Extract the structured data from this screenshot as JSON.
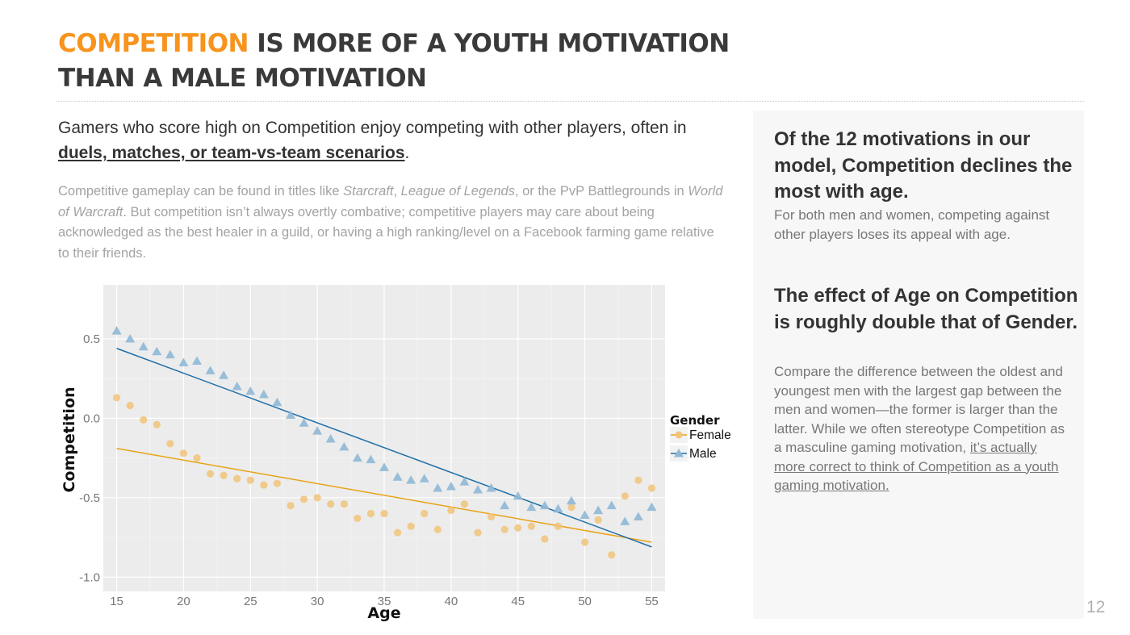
{
  "header": {
    "title_highlight": "COMPETITION",
    "title_rest": " IS MORE OF A YOUTH MOTIVATION THAN A MALE MOTIVATION"
  },
  "intro": {
    "lead_before": "Gamers who score high on Competition enjoy competing with other players, often in ",
    "lead_link": "duels, matches, or team-vs-team scenarios",
    "lead_after": ".",
    "body_1": "Competitive gameplay  can be found in titles like ",
    "body_game_1": "Starcraft",
    "body_2": ", ",
    "body_game_2": "League of Legends",
    "body_3": ", or the PvP Battlegrounds  in ",
    "body_game_3": "World of Warcraft",
    "body_4": ". But competition isn’t always overtly combative; competitive players may care about being acknowledged as the best healer in a guild, or having a high ranking/level on a Facebook farming game relative to their friends."
  },
  "sidebar": {
    "heading_1": "Of the 12 motivations in our model, Competition declines the most with age.",
    "text_1": "For both men and women, competing against other players loses its appeal with age.",
    "heading_2": "The effect of Age on Competition is roughly double that of Gender.",
    "text_2": "Compare the difference between the oldest and youngest men with the largest gap between the men and women—the former is larger than the latter. While we often stereotype Competition as a masculine gaming motivation, ",
    "text_2_link": "it’s actually more correct to think of Competition as a youth gaming motivation."
  },
  "page_number": "12",
  "colors": {
    "accent": "#f7941d",
    "female": "#e8a317",
    "male": "#1f6fa8",
    "female_point": "#f1c47a",
    "male_point": "#8fb8d6",
    "panel_bg": "#ececec",
    "grid": "#ffffff"
  },
  "chart_data": {
    "type": "scatter",
    "title": "",
    "xlabel": "Age",
    "ylabel": "Competition",
    "xlim": [
      14,
      56
    ],
    "ylim": [
      -1.09,
      0.84
    ],
    "xticks": [
      15,
      20,
      25,
      30,
      35,
      40,
      45,
      50,
      55
    ],
    "yticks": [
      0.5,
      0.0,
      -0.5,
      -1.0
    ],
    "ytick_labels": [
      "0.5",
      "0.0",
      "-0.5",
      "-1.0"
    ],
    "legend": {
      "title": "Gender",
      "position": "right"
    },
    "series": [
      {
        "name": "Female",
        "marker": "circle",
        "x": [
          15,
          16,
          17,
          18,
          19,
          20,
          21,
          22,
          23,
          24,
          25,
          26,
          27,
          28,
          29,
          30,
          31,
          32,
          33,
          34,
          35,
          36,
          37,
          38,
          39,
          40,
          41,
          42,
          43,
          44,
          45,
          46,
          47,
          48,
          49,
          50,
          51,
          52,
          53,
          54,
          55
        ],
        "y": [
          0.13,
          0.08,
          -0.01,
          -0.04,
          -0.16,
          -0.22,
          -0.25,
          -0.35,
          -0.36,
          -0.38,
          -0.39,
          -0.42,
          -0.41,
          -0.55,
          -0.51,
          -0.5,
          -0.54,
          -0.54,
          -0.63,
          -0.6,
          -0.6,
          -0.72,
          -0.68,
          -0.6,
          -0.7,
          -0.58,
          -0.54,
          -0.72,
          -0.62,
          -0.7,
          -0.69,
          -0.68,
          -0.76,
          -0.68,
          -0.56,
          -0.78,
          -0.64,
          -0.86,
          -0.49,
          -0.39,
          -0.44
        ],
        "fit": {
          "x": [
            15,
            55
          ],
          "y": [
            -0.19,
            -0.78
          ]
        }
      },
      {
        "name": "Male",
        "marker": "triangle",
        "x": [
          15,
          16,
          17,
          18,
          19,
          20,
          21,
          22,
          23,
          24,
          25,
          26,
          27,
          28,
          29,
          30,
          31,
          32,
          33,
          34,
          35,
          36,
          37,
          38,
          39,
          40,
          41,
          42,
          43,
          44,
          45,
          46,
          47,
          48,
          49,
          50,
          51,
          52,
          53,
          54,
          55
        ],
        "y": [
          0.55,
          0.5,
          0.45,
          0.42,
          0.4,
          0.35,
          0.36,
          0.3,
          0.27,
          0.2,
          0.17,
          0.15,
          0.1,
          0.02,
          -0.03,
          -0.08,
          -0.13,
          -0.18,
          -0.25,
          -0.26,
          -0.31,
          -0.37,
          -0.39,
          -0.38,
          -0.44,
          -0.43,
          -0.4,
          -0.45,
          -0.44,
          -0.55,
          -0.49,
          -0.56,
          -0.55,
          -0.57,
          -0.52,
          -0.61,
          -0.58,
          -0.55,
          -0.65,
          -0.62,
          -0.56
        ],
        "fit": {
          "x": [
            15,
            55
          ],
          "y": [
            0.44,
            -0.81
          ]
        }
      }
    ]
  }
}
